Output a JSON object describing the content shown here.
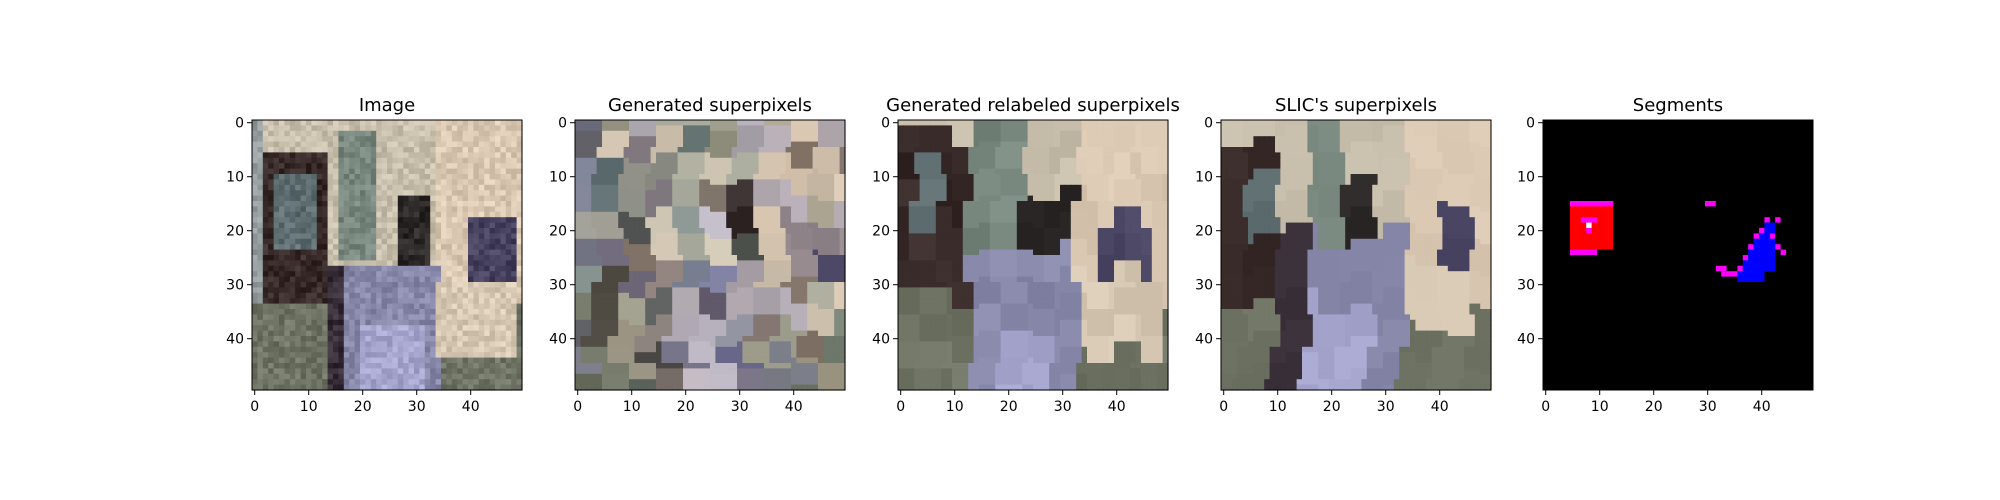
{
  "figure": {
    "background": "#ffffff"
  },
  "chart_data": [
    {
      "type": "heatmap",
      "title": "Image",
      "content": "photo",
      "xticks": [
        0,
        10,
        20,
        30,
        40
      ],
      "yticks": [
        0,
        10,
        20,
        30,
        40
      ],
      "xlim": [
        -0.5,
        49.5
      ],
      "ylim": [
        49.5,
        -0.5
      ],
      "grid": false
    },
    {
      "type": "heatmap",
      "title": "Generated superpixels",
      "content": "superpixels",
      "xticks": [
        0,
        10,
        20,
        30,
        40
      ],
      "yticks": [
        0,
        10,
        20,
        30,
        40
      ],
      "xlim": [
        -0.5,
        49.5
      ],
      "ylim": [
        49.5,
        -0.5
      ],
      "grid": false
    },
    {
      "type": "heatmap",
      "title": "Generated relabeled superpixels",
      "content": "relabeled",
      "xticks": [
        0,
        10,
        20,
        30,
        40
      ],
      "yticks": [
        0,
        10,
        20,
        30,
        40
      ],
      "xlim": [
        -0.5,
        49.5
      ],
      "ylim": [
        49.5,
        -0.5
      ],
      "grid": false
    },
    {
      "type": "heatmap",
      "title": "SLIC's superpixels",
      "content": "slic",
      "xticks": [
        0,
        10,
        20,
        30,
        40
      ],
      "yticks": [
        0,
        10,
        20,
        30,
        40
      ],
      "xlim": [
        -0.5,
        49.5
      ],
      "ylim": [
        49.5,
        -0.5
      ],
      "grid": false
    },
    {
      "type": "heatmap",
      "title": "Segments",
      "content": "segments",
      "background_color": "#000000",
      "xticks": [
        0,
        10,
        20,
        30,
        40
      ],
      "yticks": [
        0,
        10,
        20,
        30,
        40
      ],
      "xlim": [
        -0.5,
        49.5
      ],
      "ylim": [
        49.5,
        -0.5
      ],
      "grid": false,
      "segments": [
        {
          "color": "#ff0000",
          "cells": [
            [
              5,
              15,
              8,
              9
            ]
          ]
        },
        {
          "color": "#ff00ff",
          "cells": [
            [
              5,
              15,
              8,
              1
            ],
            [
              5,
              24,
              5,
              1
            ],
            [
              7,
              18,
              3,
              1
            ],
            [
              8,
              20,
              1,
              1
            ],
            [
              30,
              15,
              2,
              1
            ],
            [
              33,
              28,
              6,
              1
            ],
            [
              32,
              27,
              2,
              1
            ],
            [
              41,
              18,
              1,
              1
            ],
            [
              43,
              18,
              1,
              1
            ],
            [
              40,
              20,
              1,
              1
            ],
            [
              42,
              21,
              1,
              1
            ],
            [
              43,
              23,
              1,
              1
            ],
            [
              44,
              24,
              1,
              1
            ],
            [
              39,
              21,
              1,
              1
            ],
            [
              38,
              23,
              1,
              1
            ],
            [
              37,
              25,
              1,
              1
            ],
            [
              36,
              27,
              1,
              1
            ]
          ]
        },
        {
          "color": "#0000ff",
          "cells": [
            [
              41,
              19,
              2,
              2
            ],
            [
              40,
              21,
              2,
              2
            ],
            [
              39,
              22,
              4,
              2
            ],
            [
              38,
              24,
              5,
              2
            ],
            [
              37,
              26,
              6,
              2
            ],
            [
              36,
              28,
              5,
              2
            ],
            [
              39,
              29,
              2,
              1
            ]
          ]
        },
        {
          "color": "#ffffff",
          "cells": [
            [
              8,
              19,
              1,
              1
            ]
          ]
        }
      ]
    }
  ]
}
